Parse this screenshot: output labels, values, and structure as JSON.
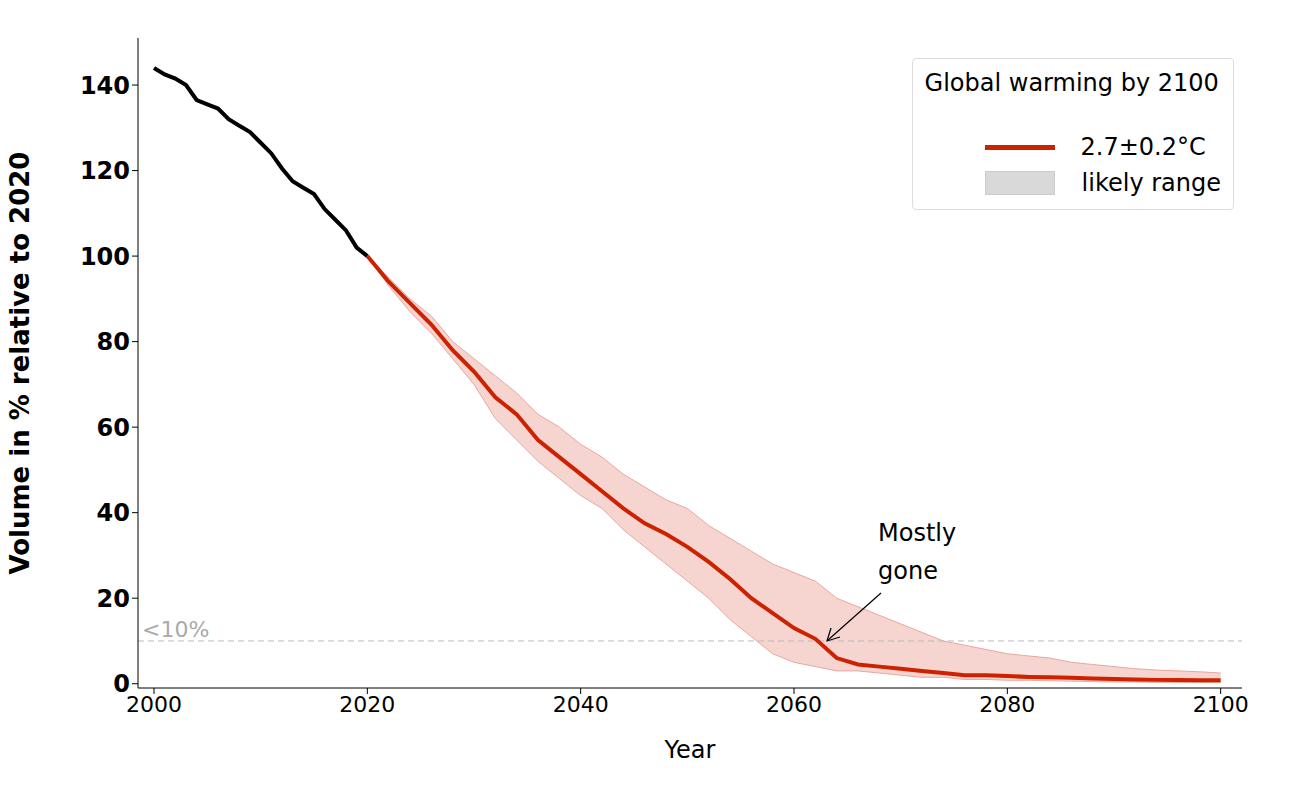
{
  "chart_data": {
    "type": "line",
    "x_label": "Year",
    "y_label": "Volume in % relative to 2020",
    "xlim": [
      1998.5,
      2102
    ],
    "xticks": [
      2000,
      2020,
      2040,
      2060,
      2080,
      2100
    ],
    "ylim": [
      -1,
      151
    ],
    "yticks": [
      0,
      20,
      40,
      60,
      80,
      100,
      120,
      140
    ],
    "grid": false,
    "legend": "upper right",
    "legend_title": "Global warming by 2100",
    "series": [
      {
        "color": "#000000",
        "line_style": "solid",
        "marker": "none",
        "x": [
          2000,
          2001,
          2002,
          2003,
          2004,
          2005,
          2006,
          2007,
          2008,
          2009,
          2010,
          2011,
          2012,
          2013,
          2014,
          2015,
          2016,
          2017,
          2018,
          2019,
          2020
        ],
        "values": [
          144,
          142.5,
          141.5,
          140,
          136.5,
          135.5,
          134.5,
          132,
          130.5,
          129,
          126.5,
          124,
          120.5,
          117.5,
          116,
          114.5,
          111,
          108.5,
          106,
          102,
          100
        ]
      },
      {
        "name": "2.7±0.2°C",
        "color": "#cc2200",
        "line_style": "solid",
        "marker": "none",
        "x": [
          2020,
          2022,
          2024,
          2026,
          2028,
          2030,
          2032,
          2034,
          2036,
          2038,
          2040,
          2042,
          2044,
          2046,
          2048,
          2050,
          2052,
          2054,
          2056,
          2058,
          2060,
          2062,
          2064,
          2066,
          2068,
          2070,
          2072,
          2074,
          2076,
          2078,
          2080,
          2082,
          2084,
          2086,
          2088,
          2090,
          2092,
          2094,
          2096,
          2098,
          2100
        ],
        "values": [
          100,
          94,
          89,
          84,
          78,
          73,
          67,
          63,
          57,
          53,
          49,
          45,
          41,
          37.5,
          35,
          32,
          28.5,
          24.5,
          20,
          16.5,
          13,
          10.5,
          6,
          4.5,
          4,
          3.5,
          3,
          2.5,
          2,
          2,
          1.8,
          1.6,
          1.5,
          1.4,
          1.2,
          1.1,
          1.0,
          0.9,
          0.9,
          0.8,
          0.8
        ],
        "range": {
          "name": "likely range",
          "color": "#f5cdc8",
          "low": [
            100,
            93,
            87,
            82,
            76,
            70,
            62,
            57,
            52,
            48,
            44,
            41,
            36,
            32,
            28,
            24,
            20,
            15,
            11,
            7,
            5,
            4,
            3,
            3,
            2.5,
            2,
            1.5,
            1.5,
            1,
            1,
            0.8,
            0.8,
            0.7,
            0.6,
            0.5,
            0.4,
            0.4,
            0.3,
            0.3,
            0.3,
            0.3
          ],
          "high": [
            100,
            95,
            90,
            86,
            80,
            76,
            72,
            68,
            63,
            60,
            56,
            53,
            49,
            46,
            43,
            41,
            37,
            34,
            31,
            28,
            26,
            24,
            20,
            18,
            16,
            14,
            12,
            10,
            9,
            8,
            7,
            6.5,
            6,
            5,
            4.5,
            4,
            3.5,
            3.2,
            3,
            2.8,
            2.5
          ]
        }
      }
    ],
    "reference_lines": [
      {
        "y": 10,
        "label": "<10%",
        "color": "#bbbbbb",
        "line_style": "dashed"
      }
    ],
    "annotations": [
      {
        "text": "Mostly gone",
        "x": 2063,
        "y": 10
      }
    ]
  }
}
